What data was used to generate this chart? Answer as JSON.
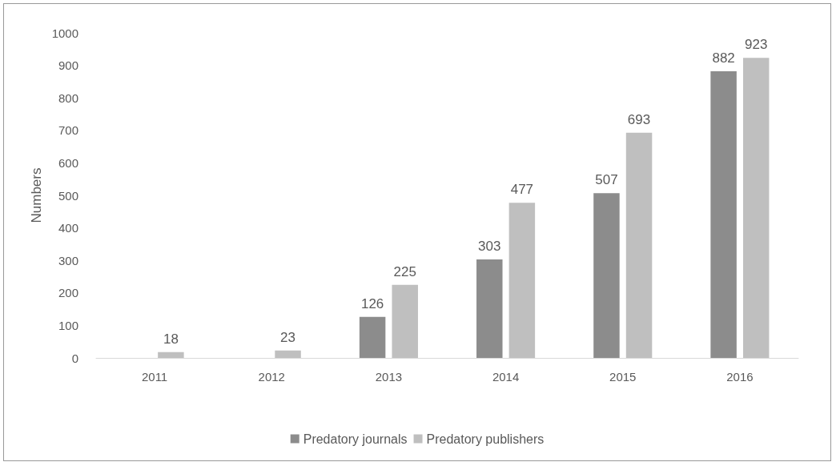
{
  "chart_data": {
    "type": "bar",
    "categories": [
      "2011",
      "2012",
      "2013",
      "2014",
      "2015",
      "2016"
    ],
    "ylabel": "Numbers",
    "ylim": [
      0,
      1000
    ],
    "yticks": [
      0,
      100,
      200,
      300,
      400,
      500,
      600,
      700,
      800,
      900,
      1000
    ],
    "series": [
      {
        "name": "Predatory journals",
        "color": "#8c8c8c",
        "values": [
          null,
          null,
          126,
          303,
          507,
          882
        ]
      },
      {
        "name": "Predatory publishers",
        "color": "#bfbfbf",
        "values": [
          18,
          23,
          225,
          477,
          693,
          923
        ]
      }
    ],
    "data_labels": true,
    "grid": false,
    "legend": "bottom"
  }
}
